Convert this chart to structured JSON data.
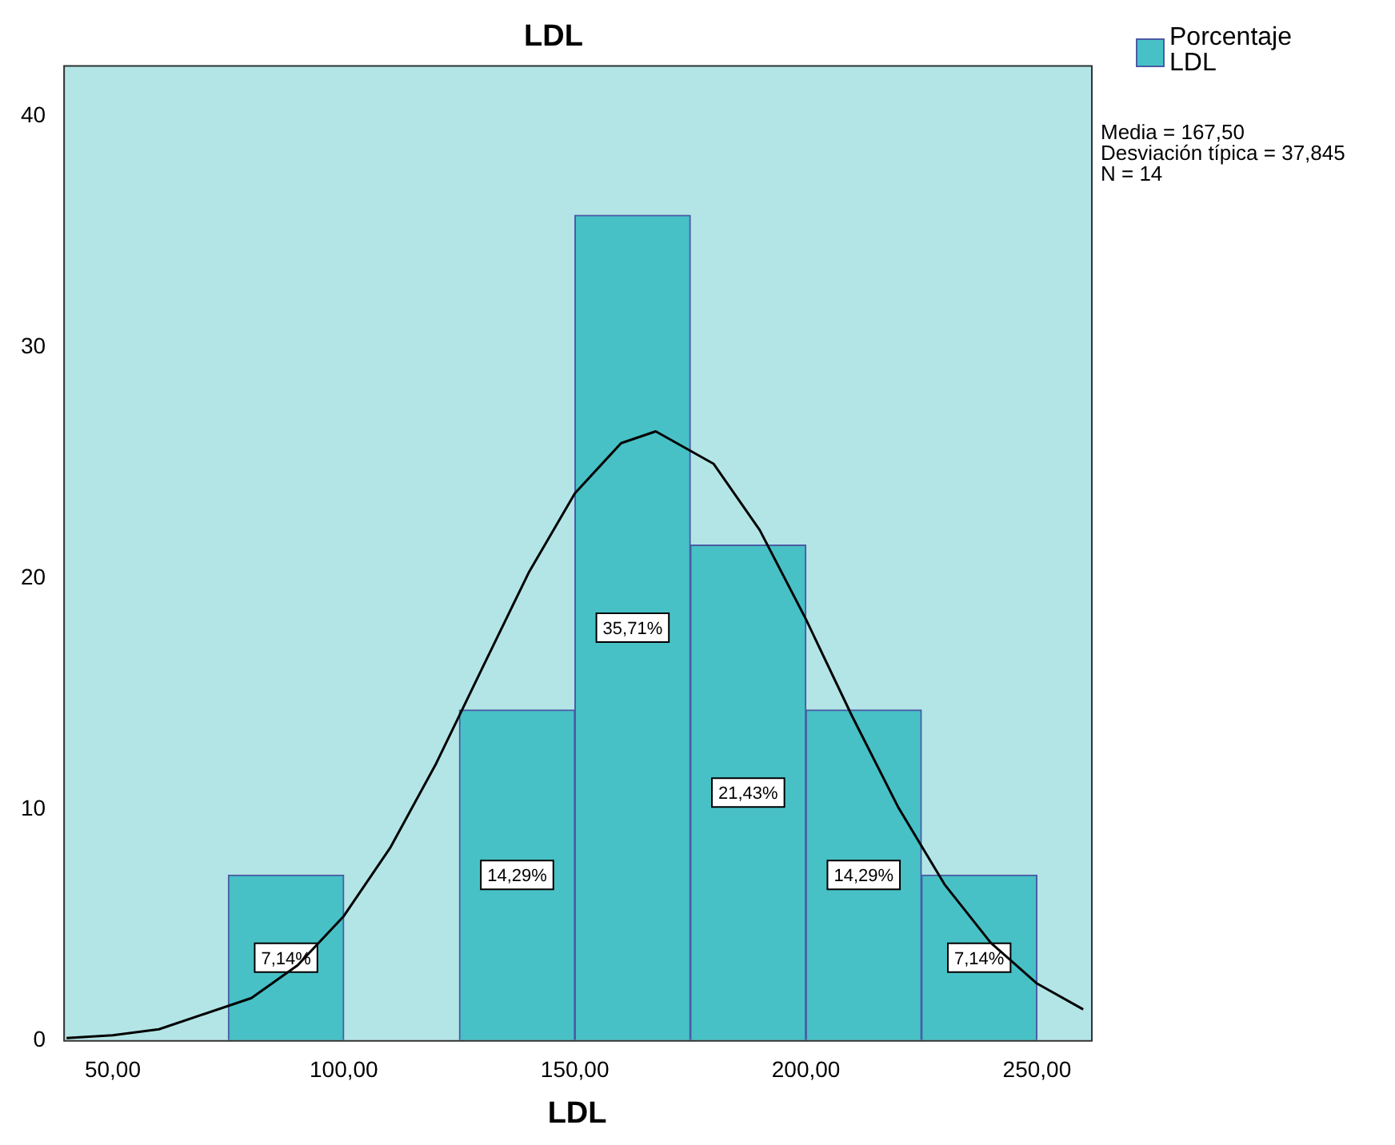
{
  "chart_data": {
    "type": "histogram",
    "title": "LDL",
    "xlabel": "LDL",
    "bins": [
      75,
      100,
      125,
      150,
      175,
      200,
      225,
      250
    ],
    "series": [
      {
        "name": "Porcentaje LDL",
        "color": "#47c1c6",
        "values": [
          7.14,
          0,
          14.29,
          35.71,
          21.43,
          14.29,
          7.14
        ],
        "value_labels": [
          "7,14%",
          null,
          "14,29%",
          "35,71%",
          "21,43%",
          "14,29%",
          "7,14%"
        ]
      },
      {
        "type": "line",
        "color": "#000000",
        "x": [
          40,
          50,
          60,
          80,
          90,
          100,
          110,
          120,
          130,
          140,
          150,
          160,
          167.5,
          180,
          190,
          200,
          210,
          220,
          230,
          240,
          250,
          260
        ],
        "values": [
          0.09,
          0.21,
          0.47,
          1.82,
          3.24,
          5.37,
          8.31,
          11.98,
          16.12,
          20.23,
          23.67,
          25.84,
          26.35,
          24.95,
          22.08,
          18.22,
          14.02,
          10.07,
          6.74,
          4.21,
          2.45,
          1.33
        ]
      }
    ],
    "xlim": [
      39.3,
      261.7
    ],
    "ylim": [
      0,
      42.2
    ],
    "xticks": [
      {
        "value": 50,
        "label": "50,00"
      },
      {
        "value": 100,
        "label": "100,00"
      },
      {
        "value": 150,
        "label": "150,00"
      },
      {
        "value": 200,
        "label": "200,00"
      },
      {
        "value": 250,
        "label": "250,00"
      }
    ],
    "yticks": [
      0,
      10,
      20,
      30,
      40
    ],
    "grid": false,
    "legend": "top right",
    "marker": "none",
    "annotations": [
      "Media = 167,50",
      "Desviación típica = 37,845",
      "N = 14"
    ]
  }
}
